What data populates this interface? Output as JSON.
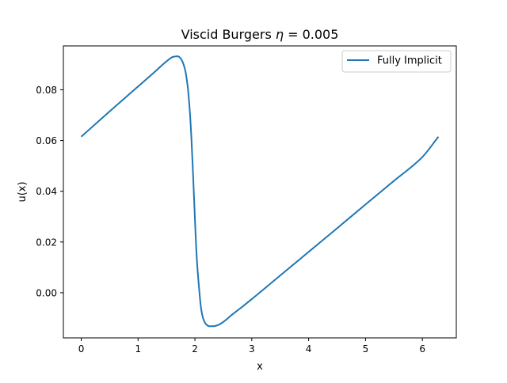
{
  "chart_data": {
    "type": "line",
    "title": "Viscid Burgers η = 0.005",
    "title_prefix": "Viscid Burgers ",
    "title_eta": "η",
    "title_value": " = 0.005",
    "xlabel": "x",
    "ylabel": "u(x)",
    "xlim": [
      -0.314,
      6.597
    ],
    "ylim": [
      -0.0178,
      0.0973
    ],
    "xticks": [
      0,
      1,
      2,
      3,
      4,
      5,
      6
    ],
    "xtick_labels": [
      "0",
      "1",
      "2",
      "3",
      "4",
      "5",
      "6"
    ],
    "yticks": [
      0.0,
      0.02,
      0.04,
      0.06,
      0.08
    ],
    "ytick_labels": [
      "0.00",
      "0.02",
      "0.04",
      "0.06",
      "0.08"
    ],
    "grid": false,
    "legend_position": "top-right",
    "colors": {
      "series": "#1f77b4"
    },
    "series": [
      {
        "name": "Fully Implicit",
        "x": [
          0.0,
          0.5,
          1.0,
          1.3,
          1.5,
          1.62,
          1.7,
          1.76,
          1.82,
          1.87,
          1.91,
          1.94,
          1.97,
          2.0,
          2.03,
          2.07,
          2.11,
          2.15,
          2.2,
          2.25,
          2.32,
          2.4,
          2.5,
          2.65,
          2.8,
          3.0,
          3.5,
          4.0,
          4.5,
          5.0,
          5.5,
          6.0,
          6.283
        ],
        "y": [
          0.0615,
          0.0715,
          0.0813,
          0.0872,
          0.0912,
          0.093,
          0.0932,
          0.092,
          0.0885,
          0.0818,
          0.0715,
          0.06,
          0.045,
          0.029,
          0.0145,
          0.0025,
          -0.0065,
          -0.0105,
          -0.0125,
          -0.0132,
          -0.0132,
          -0.0128,
          -0.0115,
          -0.0087,
          -0.0061,
          -0.0025,
          0.0068,
          0.0161,
          0.0254,
          0.0348,
          0.0441,
          0.0535,
          0.0615
        ]
      }
    ]
  }
}
